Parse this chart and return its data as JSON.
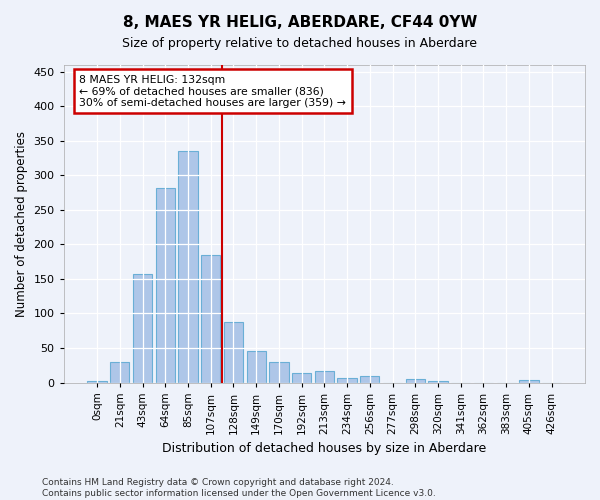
{
  "title": "8, MAES YR HELIG, ABERDARE, CF44 0YW",
  "subtitle": "Size of property relative to detached houses in Aberdare",
  "xlabel": "Distribution of detached houses by size in Aberdare",
  "ylabel": "Number of detached properties",
  "bar_color": "#aec6e8",
  "bar_edge_color": "#6aafd6",
  "background_color": "#eef2fa",
  "grid_color": "#ffffff",
  "categories": [
    "0sqm",
    "21sqm",
    "43sqm",
    "64sqm",
    "85sqm",
    "107sqm",
    "128sqm",
    "149sqm",
    "170sqm",
    "192sqm",
    "213sqm",
    "234sqm",
    "256sqm",
    "277sqm",
    "298sqm",
    "320sqm",
    "341sqm",
    "362sqm",
    "383sqm",
    "405sqm",
    "426sqm"
  ],
  "values": [
    2,
    30,
    157,
    282,
    335,
    185,
    88,
    46,
    30,
    14,
    17,
    6,
    10,
    0,
    5,
    2,
    0,
    0,
    0,
    3,
    0
  ],
  "ylim": [
    0,
    460
  ],
  "yticks": [
    0,
    50,
    100,
    150,
    200,
    250,
    300,
    350,
    400,
    450
  ],
  "property_line_x": 5.5,
  "annotation_text": "8 MAES YR HELIG: 132sqm\n← 69% of detached houses are smaller (836)\n30% of semi-detached houses are larger (359) →",
  "annotation_box_color": "#ffffff",
  "annotation_box_edge_color": "#cc0000",
  "footer_text": "Contains HM Land Registry data © Crown copyright and database right 2024.\nContains public sector information licensed under the Open Government Licence v3.0.",
  "property_line_color": "#cc0000",
  "figsize": [
    6.0,
    5.0
  ],
  "dpi": 100
}
